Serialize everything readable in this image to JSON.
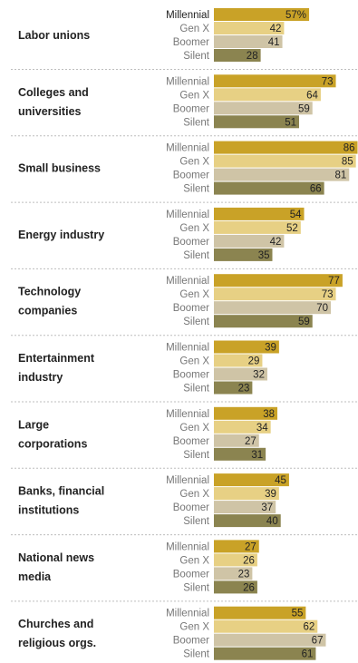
{
  "chart_data": {
    "type": "bar",
    "orientation": "horizontal",
    "series_names": [
      "Millennial",
      "Gen X",
      "Boomer",
      "Silent"
    ],
    "colors": {
      "Millennial": "#c9a227",
      "Gen X": "#e7d084",
      "Boomer": "#cfc4a6",
      "Silent": "#8b8450"
    },
    "value_suffix_first": "%",
    "xlim": [
      0,
      100
    ],
    "groups": [
      {
        "lines": [
          "Labor unions"
        ],
        "values": [
          57,
          42,
          41,
          28
        ]
      },
      {
        "lines": [
          "Colleges and",
          "universities"
        ],
        "values": [
          73,
          64,
          59,
          51
        ]
      },
      {
        "lines": [
          "Small business"
        ],
        "values": [
          86,
          85,
          81,
          66
        ]
      },
      {
        "lines": [
          "Energy industry"
        ],
        "values": [
          54,
          52,
          42,
          35
        ]
      },
      {
        "lines": [
          "Technology",
          "companies"
        ],
        "values": [
          77,
          73,
          70,
          59
        ]
      },
      {
        "lines": [
          "Entertainment",
          "industry"
        ],
        "values": [
          39,
          29,
          32,
          23
        ]
      },
      {
        "lines": [
          "Large",
          "corporations"
        ],
        "values": [
          38,
          34,
          27,
          31
        ]
      },
      {
        "lines": [
          "Banks, financial",
          "institutions"
        ],
        "values": [
          45,
          39,
          37,
          40
        ]
      },
      {
        "lines": [
          "National news",
          "media"
        ],
        "values": [
          27,
          26,
          23,
          26
        ]
      },
      {
        "lines": [
          "Churches and",
          "religious orgs."
        ],
        "values": [
          55,
          62,
          67,
          61
        ]
      }
    ]
  }
}
